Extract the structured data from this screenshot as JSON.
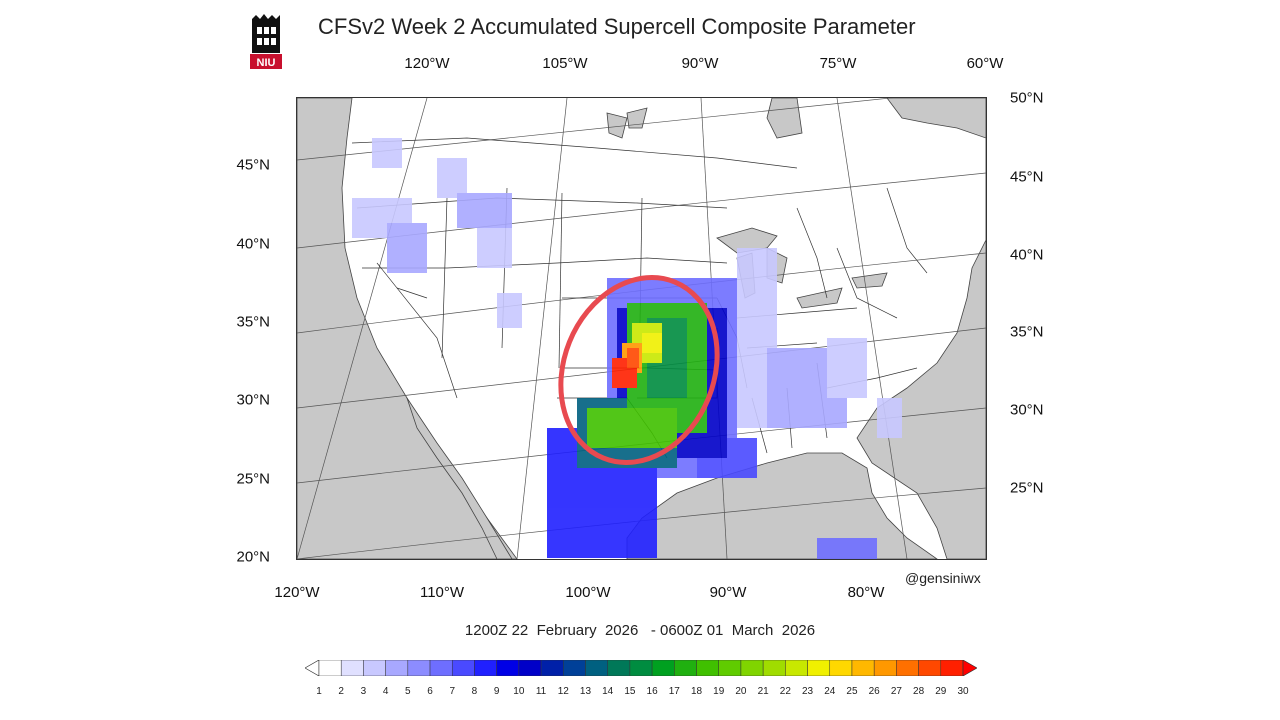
{
  "header": {
    "title": "CFSv2 Week 2 Accumulated Supercell Composite Parameter",
    "logo_text": "NIU"
  },
  "axes": {
    "top_lon": [
      "120°W",
      "105°W",
      "90°W",
      "75°W",
      "60°W"
    ],
    "bottom_lon": [
      "120°W",
      "110°W",
      "100°W",
      "90°W",
      "80°W"
    ],
    "left_lat": [
      "45°N",
      "40°N",
      "35°N",
      "30°N",
      "25°N",
      "20°N"
    ],
    "right_lat": [
      "50°N",
      "45°N",
      "40°N",
      "35°N",
      "30°N",
      "25°N"
    ]
  },
  "footer": {
    "credit": "@gensiniwx",
    "time_range": "1200Z 22  February  2026   - 0600Z 01  March  2026"
  },
  "colorbar": {
    "labels": [
      "1",
      "2",
      "3",
      "4",
      "5",
      "6",
      "7",
      "8",
      "9",
      "10",
      "11",
      "12",
      "13",
      "14",
      "15",
      "16",
      "17",
      "18",
      "19",
      "20",
      "21",
      "22",
      "23",
      "24",
      "25",
      "26",
      "27",
      "28",
      "29",
      "30"
    ],
    "colors": [
      "#ffffff",
      "#e0e0ff",
      "#c8c8ff",
      "#a8a8ff",
      "#8c8cff",
      "#6e6eff",
      "#4a4aff",
      "#2020ff",
      "#0000e6",
      "#0000c8",
      "#0020a8",
      "#004098",
      "#006080",
      "#007858",
      "#008c40",
      "#00a020",
      "#20b010",
      "#40c000",
      "#60cc00",
      "#80d400",
      "#a0dc00",
      "#c8e800",
      "#f0f000",
      "#ffd800",
      "#ffb800",
      "#ff9800",
      "#ff7000",
      "#ff4800",
      "#ff2000"
    ],
    "arrow_color": "#ff0000"
  },
  "highlight": {
    "color": "#e84a50"
  },
  "colors": {
    "land": "#ffffff",
    "water": "#c8c8c8",
    "border": "#333333"
  }
}
